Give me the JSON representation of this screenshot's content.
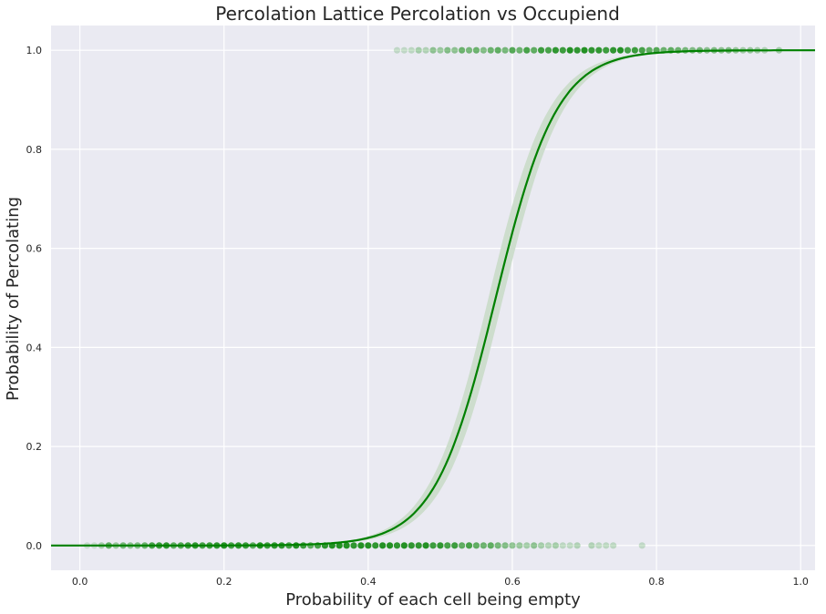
{
  "chart_data": {
    "type": "scatter",
    "title": "Percolation Lattice Percolation vs Occupiend",
    "xlabel": "Probability of each cell being empty",
    "ylabel": "Probability of Percolating",
    "xlim": [
      -0.04,
      1.02
    ],
    "ylim": [
      -0.05,
      1.05
    ],
    "xticks": [
      0.0,
      0.2,
      0.4,
      0.6,
      0.8,
      1.0
    ],
    "xtick_labels": [
      "0.0",
      "0.2",
      "0.4",
      "0.6",
      "0.8",
      "1.0"
    ],
    "yticks": [
      0.0,
      0.2,
      0.4,
      0.6,
      0.8,
      1.0
    ],
    "ytick_labels": [
      "0.0",
      "0.2",
      "0.4",
      "0.6",
      "0.8",
      "1.0"
    ],
    "grid": true,
    "background": "#eaeaf2",
    "grid_color": "#ffffff",
    "series_color": "#008000",
    "band_color": "#cdddcd",
    "logistic_fit": {
      "midpoint": 0.577,
      "steepness": 23.5,
      "ci_halfwidth_peak": 0.06
    },
    "points_y1": {
      "x": [
        0.44,
        0.45,
        0.46,
        0.47,
        0.48,
        0.49,
        0.5,
        0.51,
        0.52,
        0.53,
        0.54,
        0.55,
        0.56,
        0.57,
        0.58,
        0.59,
        0.6,
        0.61,
        0.62,
        0.63,
        0.64,
        0.65,
        0.66,
        0.67,
        0.68,
        0.69,
        0.7,
        0.71,
        0.72,
        0.73,
        0.74,
        0.75,
        0.76,
        0.77,
        0.78,
        0.79,
        0.8,
        0.81,
        0.82,
        0.83,
        0.84,
        0.85,
        0.86,
        0.87,
        0.88,
        0.89,
        0.9,
        0.91,
        0.92,
        0.93,
        0.94,
        0.95,
        0.97
      ],
      "alpha": [
        0.18,
        0.18,
        0.2,
        0.3,
        0.25,
        0.4,
        0.35,
        0.45,
        0.4,
        0.55,
        0.5,
        0.55,
        0.45,
        0.55,
        0.6,
        0.5,
        0.65,
        0.55,
        0.7,
        0.6,
        0.75,
        0.7,
        0.8,
        0.75,
        0.85,
        0.8,
        0.85,
        0.8,
        0.8,
        0.75,
        0.8,
        0.85,
        0.7,
        0.75,
        0.7,
        0.6,
        0.65,
        0.55,
        0.6,
        0.55,
        0.5,
        0.45,
        0.5,
        0.4,
        0.45,
        0.4,
        0.45,
        0.35,
        0.3,
        0.35,
        0.3,
        0.25,
        0.3
      ]
    },
    "points_y0": {
      "x": [
        0.01,
        0.02,
        0.03,
        0.04,
        0.05,
        0.06,
        0.07,
        0.08,
        0.09,
        0.1,
        0.11,
        0.12,
        0.13,
        0.14,
        0.15,
        0.16,
        0.17,
        0.18,
        0.19,
        0.2,
        0.21,
        0.22,
        0.23,
        0.24,
        0.25,
        0.26,
        0.27,
        0.28,
        0.29,
        0.3,
        0.31,
        0.32,
        0.33,
        0.34,
        0.35,
        0.36,
        0.37,
        0.38,
        0.39,
        0.4,
        0.41,
        0.42,
        0.43,
        0.44,
        0.45,
        0.46,
        0.47,
        0.48,
        0.49,
        0.5,
        0.51,
        0.52,
        0.53,
        0.54,
        0.55,
        0.56,
        0.57,
        0.58,
        0.59,
        0.6,
        0.61,
        0.62,
        0.63,
        0.64,
        0.65,
        0.66,
        0.67,
        0.68,
        0.69,
        0.71,
        0.72,
        0.73,
        0.74,
        0.78
      ],
      "alpha": [
        0.15,
        0.15,
        0.3,
        0.6,
        0.35,
        0.5,
        0.4,
        0.45,
        0.55,
        0.7,
        0.75,
        0.8,
        0.6,
        0.65,
        0.75,
        0.8,
        0.7,
        0.75,
        0.8,
        0.85,
        0.7,
        0.8,
        0.75,
        0.6,
        0.85,
        0.75,
        0.8,
        0.8,
        0.7,
        0.85,
        0.75,
        0.6,
        0.7,
        0.8,
        0.85,
        0.85,
        0.85,
        0.8,
        0.85,
        0.85,
        0.8,
        0.85,
        0.85,
        0.8,
        0.85,
        0.8,
        0.8,
        0.85,
        0.75,
        0.8,
        0.7,
        0.75,
        0.6,
        0.7,
        0.6,
        0.55,
        0.6,
        0.5,
        0.45,
        0.4,
        0.35,
        0.3,
        0.4,
        0.3,
        0.25,
        0.3,
        0.2,
        0.2,
        0.25,
        0.25,
        0.2,
        0.2,
        0.2,
        0.18
      ]
    }
  }
}
